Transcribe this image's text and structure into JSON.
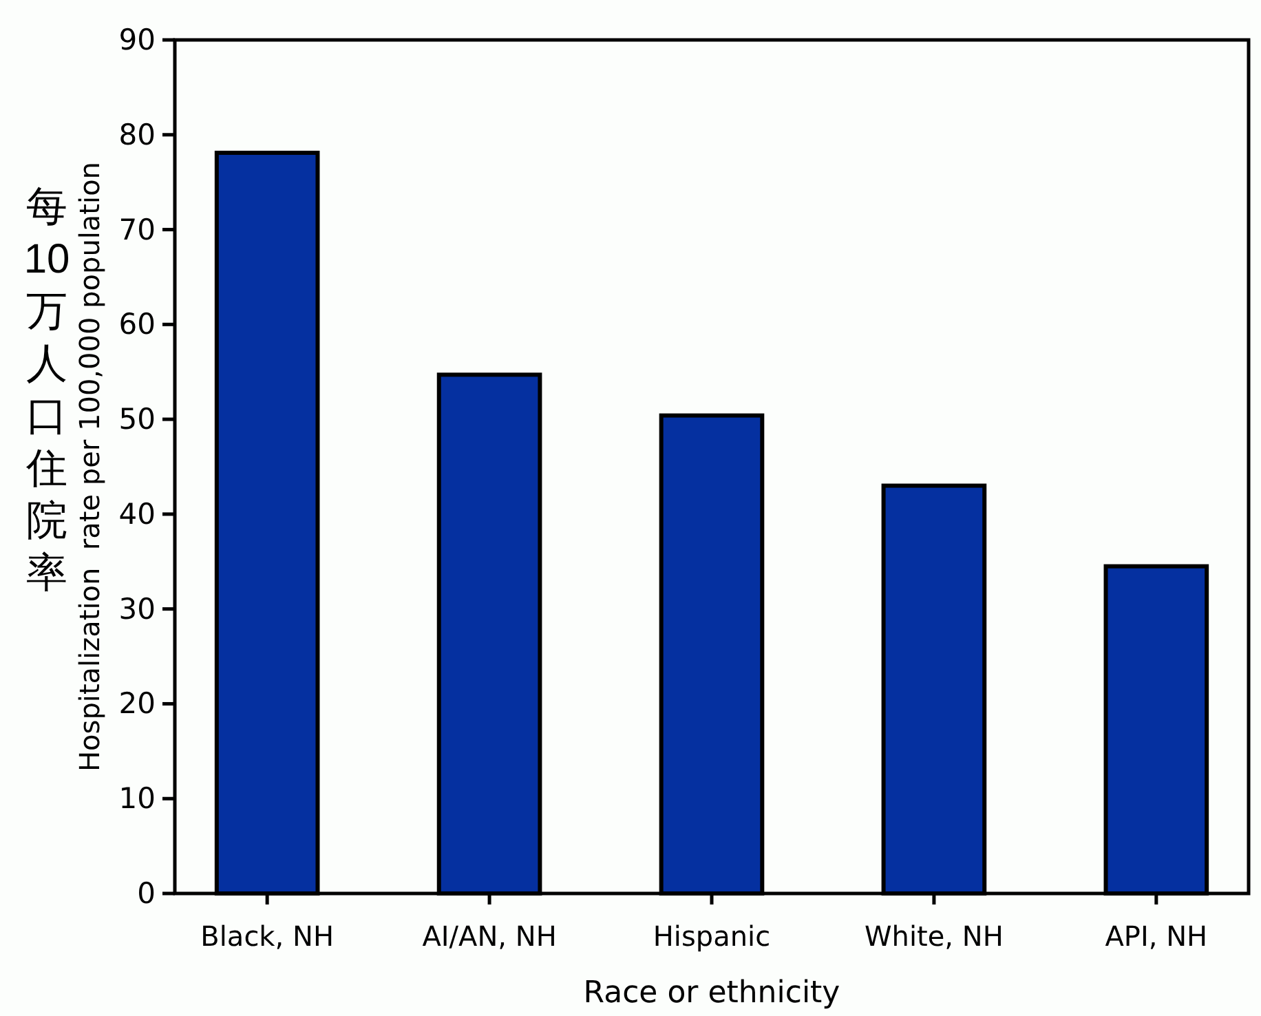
{
  "chart_data": {
    "type": "bar",
    "xlabel": "Race or ethnicity",
    "ylabel": "Hospitalization  rate per 100,000 population",
    "annotations": [
      "每10万人口住院率"
    ],
    "categories": [
      "Black, NH",
      "AI/AN, NH",
      "Hispanic",
      "White, NH",
      "API, NH"
    ],
    "values": [
      78.1,
      54.7,
      50.4,
      43.0,
      34.5
    ],
    "color": "#0530a0",
    "ylim": [
      0,
      90
    ],
    "yticks": [
      0,
      10,
      20,
      30,
      40,
      50,
      60,
      70,
      80,
      90
    ],
    "grid": false
  }
}
